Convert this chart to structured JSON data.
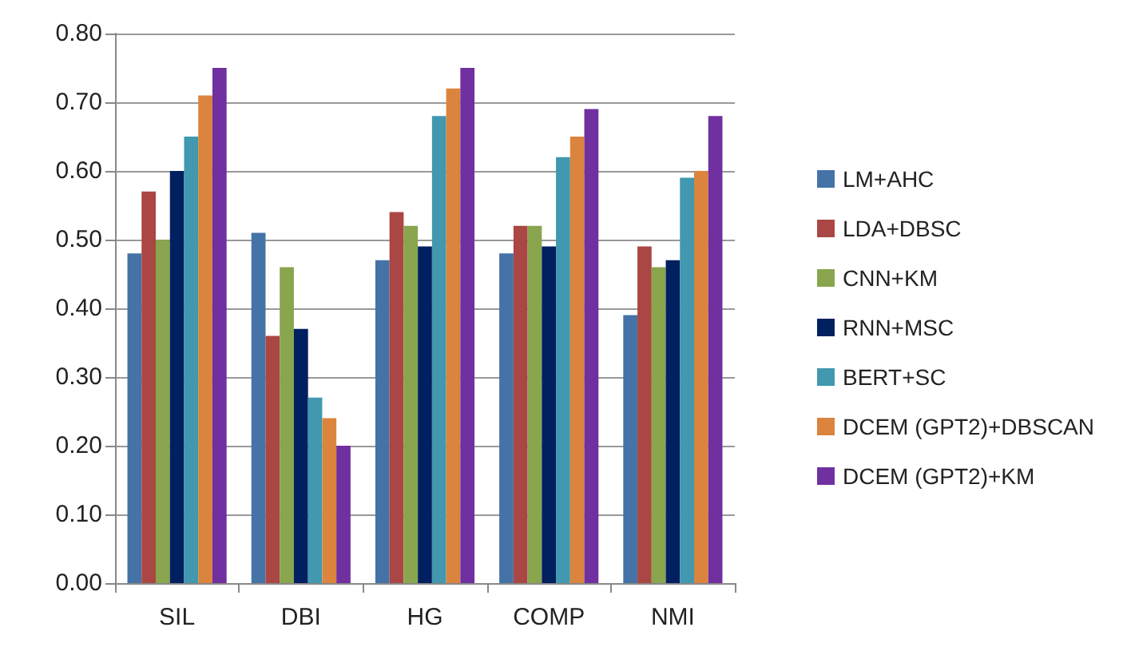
{
  "chart_data": {
    "type": "bar",
    "categories": [
      "SIL",
      "DBI",
      "HG",
      "COMP",
      "NMI"
    ],
    "series": [
      {
        "name": "LM+AHC",
        "color": "#4572a7",
        "values": [
          0.48,
          0.51,
          0.47,
          0.48,
          0.39
        ]
      },
      {
        "name": "LDA+DBSC",
        "color": "#aa4643",
        "values": [
          0.57,
          0.36,
          0.54,
          0.52,
          0.49
        ]
      },
      {
        "name": "CNN+KM",
        "color": "#89a54e",
        "values": [
          0.5,
          0.46,
          0.52,
          0.52,
          0.46
        ]
      },
      {
        "name": "RNN+MSC",
        "color": "#002060",
        "values": [
          0.6,
          0.37,
          0.49,
          0.49,
          0.47
        ]
      },
      {
        "name": "BERT+SC",
        "color": "#4198af",
        "values": [
          0.65,
          0.27,
          0.68,
          0.62,
          0.59
        ]
      },
      {
        "name": "DCEM (GPT2)+DBSCAN",
        "color": "#db843d",
        "values": [
          0.71,
          0.24,
          0.72,
          0.65,
          0.6
        ]
      },
      {
        "name": "DCEM (GPT2)+KM",
        "color": "#7030a0",
        "values": [
          0.75,
          0.2,
          0.75,
          0.69,
          0.68
        ]
      }
    ],
    "ylim": [
      0,
      0.8
    ],
    "yticks": [
      {
        "value": 0,
        "label": "0.00"
      },
      {
        "value": 0.1,
        "label": "0.10"
      },
      {
        "value": 0.2,
        "label": "0.20"
      },
      {
        "value": 0.3,
        "label": "0.30"
      },
      {
        "value": 0.4,
        "label": "0.40"
      },
      {
        "value": 0.5,
        "label": "0.50"
      },
      {
        "value": 0.6,
        "label": "0.60"
      },
      {
        "value": 0.7,
        "label": "0.70"
      },
      {
        "value": 0.8,
        "label": "0.80"
      }
    ],
    "grid": "y",
    "legend": "right"
  }
}
